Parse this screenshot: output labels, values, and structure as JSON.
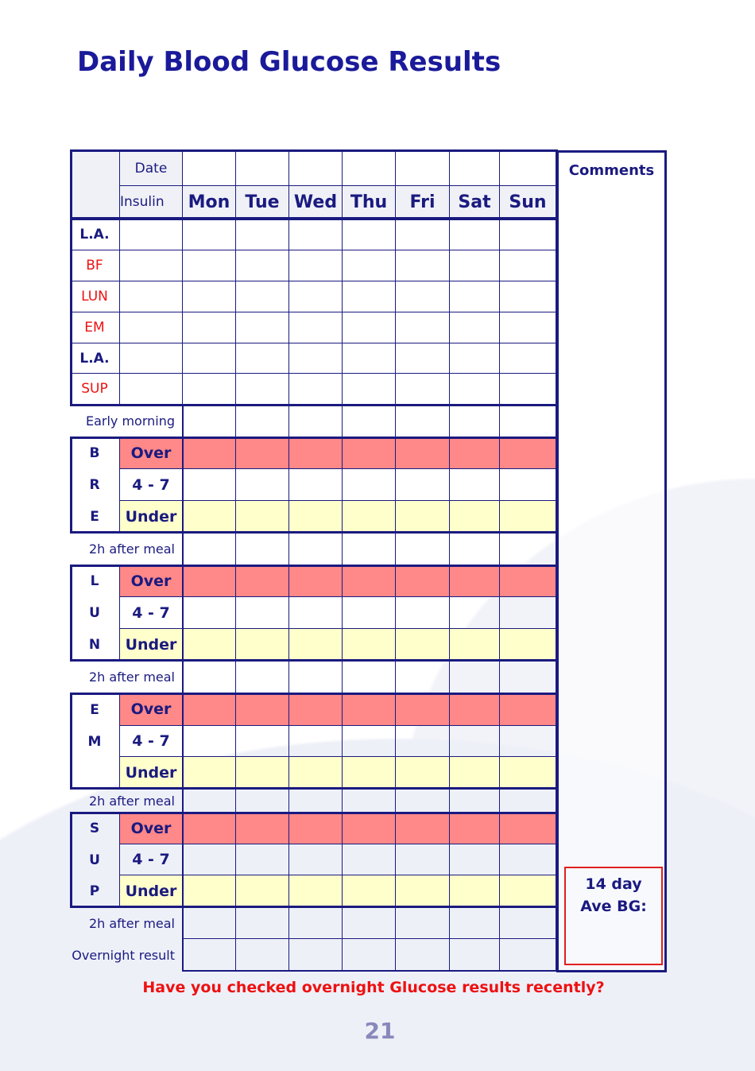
{
  "title": "Daily Blood Glucose Results",
  "header": {
    "date_label": "Date",
    "insulin_label": "Insulin",
    "days": [
      "Mon",
      "Tue",
      "Wed",
      "Thu",
      "Fri",
      "Sat",
      "Sun"
    ]
  },
  "insulin_rows": [
    {
      "label": "L.A.",
      "color": "#1a1a80",
      "bold": true
    },
    {
      "label": "BF",
      "color": "#ee1111",
      "bold": false
    },
    {
      "label": "LUN",
      "color": "#ee1111",
      "bold": false
    },
    {
      "label": "EM",
      "color": "#ee1111",
      "bold": false
    },
    {
      "label": "L.A.",
      "color": "#1a1a80",
      "bold": true
    },
    {
      "label": "SUP",
      "color": "#ee1111",
      "bold": false
    }
  ],
  "early_morning_label": "Early morning",
  "meal_blocks": [
    {
      "letters": [
        "B",
        "R",
        "E"
      ],
      "after_label": "2h after meal"
    },
    {
      "letters": [
        "L",
        "U",
        "N"
      ],
      "after_label": "2h after meal"
    },
    {
      "letters": [
        "E",
        "M",
        ""
      ],
      "after_label": "2h after meal"
    },
    {
      "letters": [
        "S",
        "U",
        "P"
      ],
      "after_label": "2h after meal"
    }
  ],
  "range_labels": [
    "Over",
    "4 - 7",
    "Under"
  ],
  "overnight_label": "Overnight result",
  "comments_label": "Comments",
  "ave_bg": {
    "line1": "14 day",
    "line2": "Ave BG:"
  },
  "question": "Have you checked overnight Glucose results recently?",
  "page_number": "21",
  "colors": {
    "over": "#ff8888",
    "under": "#ffffcc",
    "ink": "#1a1a80",
    "accent": "#ee1111"
  }
}
